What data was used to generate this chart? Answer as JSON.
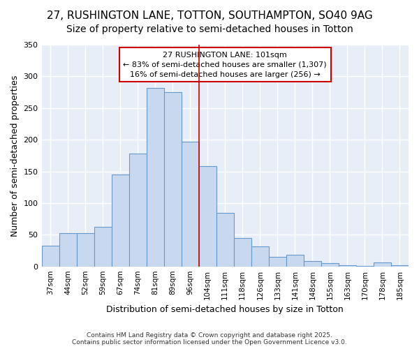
{
  "title1": "27, RUSHINGTON LANE, TOTTON, SOUTHAMPTON, SO40 9AG",
  "title2": "Size of property relative to semi-detached houses in Totton",
  "xlabel": "Distribution of semi-detached houses by size in Totton",
  "ylabel": "Number of semi-detached properties",
  "categories": [
    "37sqm",
    "44sqm",
    "52sqm",
    "59sqm",
    "67sqm",
    "74sqm",
    "81sqm",
    "89sqm",
    "96sqm",
    "104sqm",
    "111sqm",
    "118sqm",
    "126sqm",
    "133sqm",
    "141sqm",
    "148sqm",
    "155sqm",
    "163sqm",
    "170sqm",
    "178sqm",
    "185sqm"
  ],
  "bar_heights": [
    33,
    52,
    52,
    62,
    145,
    178,
    282,
    275,
    197,
    158,
    84,
    45,
    32,
    15,
    18,
    8,
    5,
    2,
    1,
    6,
    2
  ],
  "bar_color": "#c8d8ee",
  "bar_edge_color": "#6699cc",
  "vline_x": 8.5,
  "vline_color": "#cc0000",
  "annotation_title": "27 RUSHINGTON LANE: 101sqm",
  "annotation_line2": "← 83% of semi-detached houses are smaller (1,307)",
  "annotation_line3": "16% of semi-detached houses are larger (256) →",
  "annotation_box_color": "#ffffff",
  "annotation_edge_color": "#cc0000",
  "ylim": [
    0,
    350
  ],
  "yticks": [
    0,
    50,
    100,
    150,
    200,
    250,
    300,
    350
  ],
  "footer": "Contains HM Land Registry data © Crown copyright and database right 2025.\nContains public sector information licensed under the Open Government Licence v3.0.",
  "fig_bg_color": "#ffffff",
  "plot_bg_color": "#e8eef8",
  "grid_color": "#ffffff",
  "title1_fontsize": 11,
  "title2_fontsize": 10,
  "xlabel_fontsize": 9,
  "ylabel_fontsize": 9
}
